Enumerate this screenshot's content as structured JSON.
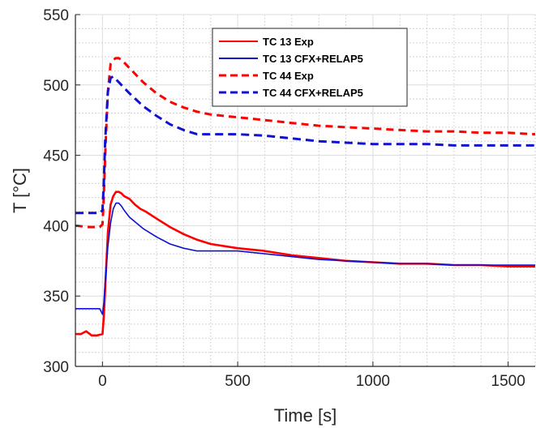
{
  "chart_data": {
    "type": "line",
    "xlabel": "Time [s]",
    "ylabel": "T [°C]",
    "xlim": [
      -100,
      1600
    ],
    "ylim": [
      300,
      550
    ],
    "xticks": [
      0,
      500,
      1000,
      1500
    ],
    "yticks": [
      300,
      350,
      400,
      450,
      500,
      550
    ],
    "x_minor_step": 100,
    "y_minor_step": 10,
    "grid": "major solid, minor dotted",
    "legend_position": "top-right",
    "series": [
      {
        "name": "TC 13 Exp",
        "color": "#ff0000",
        "line_style": "solid",
        "x": [
          -100,
          -80,
          -60,
          -40,
          -20,
          0,
          5,
          10,
          20,
          30,
          40,
          50,
          60,
          70,
          80,
          90,
          100,
          120,
          140,
          160,
          200,
          250,
          300,
          350,
          400,
          500,
          600,
          700,
          800,
          900,
          1000,
          1100,
          1200,
          1300,
          1400,
          1500,
          1600
        ],
        "y": [
          323,
          323,
          325,
          322,
          322,
          323,
          335,
          355,
          395,
          415,
          421,
          424,
          424,
          423,
          421,
          420,
          419,
          415,
          412,
          410,
          405,
          399,
          394,
          390,
          387,
          384,
          382,
          379,
          377,
          375,
          374,
          373,
          373,
          372,
          372,
          371,
          371
        ]
      },
      {
        "name": "TC 13 CFX+RELAP5",
        "color": "#1010d0",
        "line_style": "solid",
        "x": [
          -100,
          -50,
          -10,
          0,
          5,
          10,
          20,
          30,
          40,
          50,
          60,
          70,
          80,
          100,
          150,
          200,
          250,
          300,
          350,
          400,
          500,
          600,
          700,
          800,
          900,
          1000,
          1100,
          1200,
          1300,
          1400,
          1500,
          1600
        ],
        "y": [
          341,
          341,
          341,
          337,
          345,
          360,
          385,
          402,
          412,
          416,
          416,
          414,
          411,
          406,
          398,
          392,
          387,
          384,
          382,
          382,
          382,
          380,
          378,
          376,
          375,
          374,
          373,
          373,
          372,
          372,
          372,
          372
        ]
      },
      {
        "name": "TC 44 Exp",
        "color": "#ff0000",
        "line_style": "dashed",
        "x": [
          -100,
          -50,
          -10,
          0,
          5,
          10,
          20,
          30,
          40,
          50,
          60,
          70,
          80,
          100,
          150,
          200,
          250,
          300,
          350,
          400,
          500,
          600,
          700,
          800,
          900,
          1000,
          1100,
          1200,
          1300,
          1400,
          1500,
          1600
        ],
        "y": [
          400,
          399,
          399,
          401,
          420,
          450,
          495,
          515,
          518,
          519,
          519,
          518,
          516,
          512,
          502,
          494,
          488,
          484,
          481,
          479,
          477,
          475,
          473,
          471,
          470,
          469,
          468,
          467,
          467,
          466,
          466,
          465
        ]
      },
      {
        "name": "TC 44 CFX+RELAP5",
        "color": "#1010d0",
        "line_style": "dashed",
        "x": [
          -100,
          -50,
          -10,
          0,
          5,
          10,
          20,
          30,
          40,
          50,
          60,
          70,
          80,
          100,
          150,
          200,
          250,
          300,
          350,
          400,
          500,
          600,
          700,
          800,
          900,
          1000,
          1100,
          1200,
          1300,
          1400,
          1500,
          1600
        ],
        "y": [
          409,
          409,
          409,
          411,
          430,
          460,
          495,
          505,
          506,
          504,
          502,
          500,
          498,
          494,
          485,
          478,
          472,
          468,
          465,
          465,
          465,
          464,
          462,
          460,
          459,
          458,
          458,
          458,
          457,
          457,
          457,
          457
        ]
      }
    ]
  }
}
